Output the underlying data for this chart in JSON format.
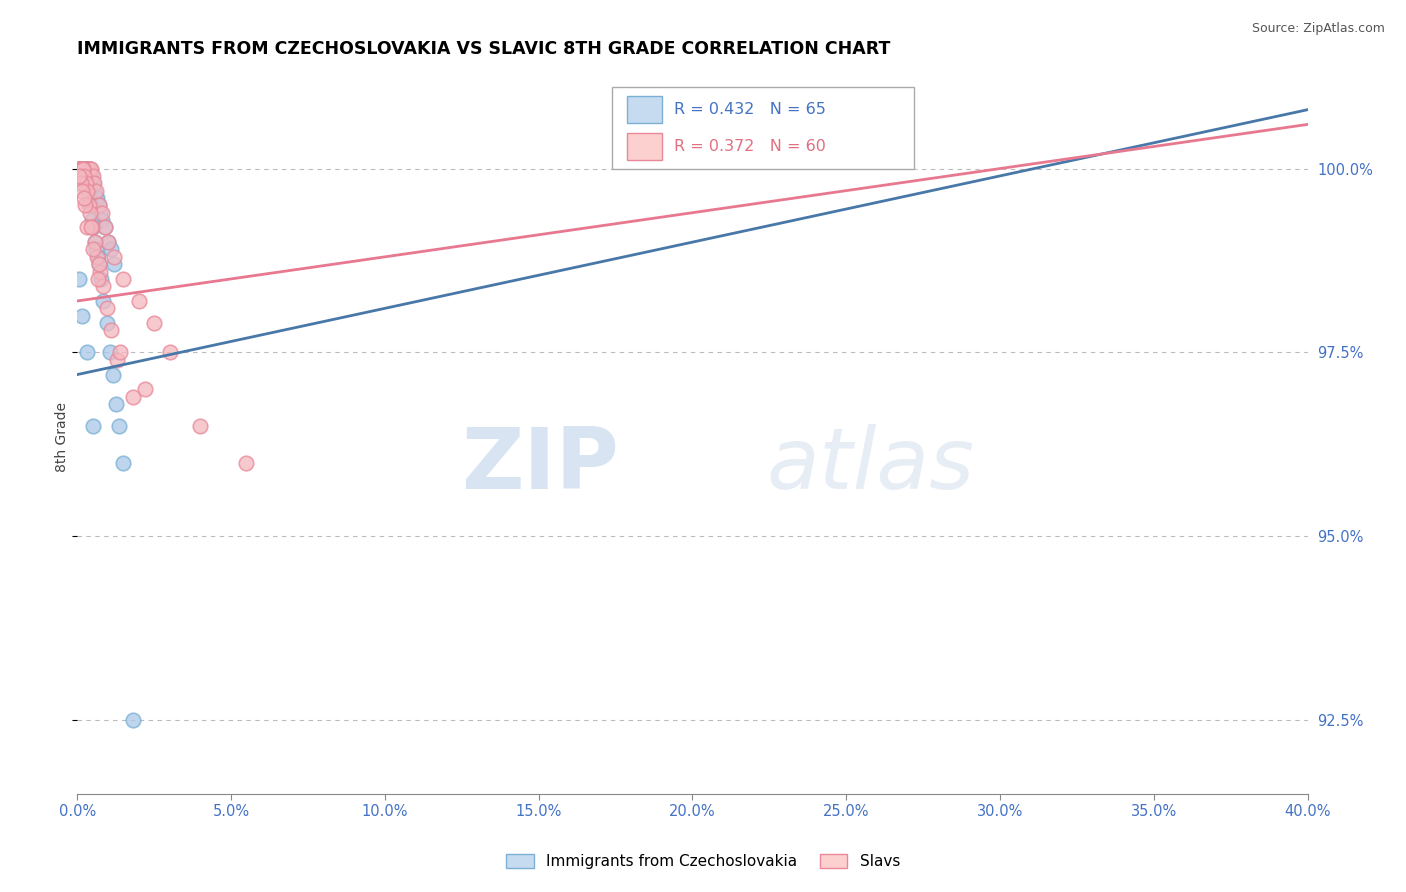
{
  "title": "IMMIGRANTS FROM CZECHOSLOVAKIA VS SLAVIC 8TH GRADE CORRELATION CHART",
  "source": "Source: ZipAtlas.com",
  "ylabel": "8th Grade",
  "xmin": 0.0,
  "xmax": 40.0,
  "ymin": 91.5,
  "ymax": 101.2,
  "yticks": [
    92.5,
    95.0,
    97.5,
    100.0
  ],
  "ytick_labels": [
    "92.5%",
    "95.0%",
    "97.5%",
    "100.0%"
  ],
  "legend1_label": "Immigrants from Czechoslovakia",
  "legend2_label": "Slavs",
  "r1": 0.432,
  "n1": 65,
  "r2": 0.372,
  "n2": 60,
  "blue_dot_color": "#a8c8e8",
  "blue_edge_color": "#7ab0d4",
  "pink_dot_color": "#f4b8c0",
  "pink_edge_color": "#e88898",
  "blue_line_color": "#4878a8",
  "pink_line_color": "#e87890",
  "blue_fill": "#c6dbef",
  "pink_fill": "#fdd0d0",
  "blue_scatter_x": [
    0.05,
    0.08,
    0.1,
    0.12,
    0.14,
    0.15,
    0.17,
    0.18,
    0.2,
    0.22,
    0.24,
    0.26,
    0.28,
    0.3,
    0.32,
    0.35,
    0.38,
    0.4,
    0.45,
    0.5,
    0.55,
    0.6,
    0.65,
    0.7,
    0.75,
    0.8,
    0.9,
    1.0,
    1.1,
    1.2,
    0.06,
    0.09,
    0.11,
    0.13,
    0.16,
    0.19,
    0.21,
    0.23,
    0.25,
    0.27,
    0.29,
    0.31,
    0.33,
    0.36,
    0.39,
    0.42,
    0.48,
    0.52,
    0.58,
    0.62,
    0.68,
    0.72,
    0.78,
    0.85,
    0.95,
    1.05,
    1.15,
    1.25,
    1.35,
    1.5,
    0.07,
    0.15,
    0.3,
    0.5,
    1.8
  ],
  "blue_scatter_y": [
    100.0,
    100.0,
    100.0,
    100.0,
    100.0,
    100.0,
    100.0,
    100.0,
    100.0,
    100.0,
    100.0,
    100.0,
    100.0,
    100.0,
    100.0,
    100.0,
    100.0,
    100.0,
    99.9,
    99.8,
    99.7,
    99.6,
    99.6,
    99.5,
    99.4,
    99.3,
    99.2,
    99.0,
    98.9,
    98.7,
    99.8,
    99.9,
    100.0,
    100.0,
    100.0,
    100.0,
    100.0,
    100.0,
    100.0,
    100.0,
    100.0,
    99.9,
    99.8,
    99.7,
    99.6,
    99.5,
    99.3,
    99.2,
    99.0,
    98.9,
    98.8,
    98.7,
    98.5,
    98.2,
    97.9,
    97.5,
    97.2,
    96.8,
    96.5,
    96.0,
    98.5,
    98.0,
    97.5,
    96.5,
    92.5
  ],
  "pink_scatter_x": [
    0.05,
    0.08,
    0.1,
    0.12,
    0.15,
    0.18,
    0.2,
    0.22,
    0.25,
    0.28,
    0.3,
    0.35,
    0.4,
    0.45,
    0.5,
    0.55,
    0.6,
    0.7,
    0.8,
    0.9,
    1.0,
    1.2,
    1.5,
    2.0,
    2.5,
    3.0,
    0.07,
    0.09,
    0.11,
    0.14,
    0.17,
    0.19,
    0.23,
    0.27,
    0.32,
    0.38,
    0.42,
    0.48,
    0.58,
    0.65,
    0.75,
    0.85,
    0.95,
    1.1,
    1.3,
    1.8,
    0.13,
    0.16,
    0.24,
    0.33,
    0.52,
    0.68,
    1.4,
    2.2,
    4.0,
    5.5,
    0.06,
    0.21,
    0.44,
    0.72
  ],
  "pink_scatter_y": [
    100.0,
    100.0,
    100.0,
    100.0,
    100.0,
    100.0,
    100.0,
    100.0,
    100.0,
    100.0,
    100.0,
    100.0,
    100.0,
    100.0,
    99.9,
    99.8,
    99.7,
    99.5,
    99.4,
    99.2,
    99.0,
    98.8,
    98.5,
    98.2,
    97.9,
    97.5,
    100.0,
    100.0,
    100.0,
    100.0,
    100.0,
    100.0,
    99.9,
    99.8,
    99.7,
    99.5,
    99.4,
    99.2,
    99.0,
    98.8,
    98.6,
    98.4,
    98.1,
    97.8,
    97.4,
    96.9,
    99.8,
    99.7,
    99.5,
    99.2,
    98.9,
    98.5,
    97.5,
    97.0,
    96.5,
    96.0,
    99.9,
    99.6,
    99.2,
    98.7
  ],
  "trendline_blue_x0": 0.0,
  "trendline_blue_y0": 97.2,
  "trendline_blue_x1": 40.0,
  "trendline_blue_y1": 100.8,
  "trendline_pink_x0": 0.0,
  "trendline_pink_y0": 98.2,
  "trendline_pink_x1": 40.0,
  "trendline_pink_y1": 100.6,
  "watermark_zip": "ZIP",
  "watermark_atlas": "atlas"
}
